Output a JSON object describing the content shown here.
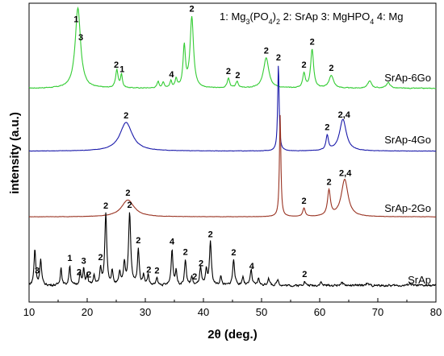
{
  "chart_data": {
    "type": "line",
    "xlabel": "2θ (deg.)",
    "ylabel": "intensity (a.u.)",
    "xlim": [
      10,
      80
    ],
    "xticks": [
      10,
      20,
      30,
      40,
      50,
      60,
      70,
      80
    ],
    "yticks_shown": false,
    "grid": false,
    "legend_items": [
      {
        "num": "1",
        "label": "Mg",
        "sub1": "3",
        "mid": "(PO",
        "sub2": "4",
        "end": ")",
        "sub3": "2"
      },
      {
        "num": "2",
        "label": "SrAp",
        "sub1": "",
        "mid": "",
        "sub2": "",
        "end": "",
        "sub3": ""
      },
      {
        "num": "3",
        "label": "MgHPO",
        "sub1": "4",
        "mid": "",
        "sub2": "",
        "end": "",
        "sub3": ""
      },
      {
        "num": "4",
        "label": "Mg",
        "sub1": "",
        "mid": "",
        "sub2": "",
        "end": "",
        "sub3": ""
      }
    ],
    "series": [
      {
        "name": "SrAp-6Go",
        "color": "#33cc33",
        "baseline": 0.72,
        "noise": 0.004,
        "peaks": [
          [
            18.4,
            1.0,
            0.55
          ],
          [
            25.1,
            0.22,
            0.25
          ],
          [
            25.9,
            0.16,
            0.2
          ],
          [
            32.2,
            0.08,
            0.2
          ],
          [
            33.1,
            0.07,
            0.2
          ],
          [
            34.4,
            0.08,
            0.2
          ],
          [
            35.3,
            0.1,
            0.2
          ],
          [
            36.7,
            0.5,
            0.25
          ],
          [
            38.0,
            0.88,
            0.35
          ],
          [
            44.3,
            0.12,
            0.25
          ],
          [
            45.8,
            0.08,
            0.25
          ],
          [
            50.8,
            0.38,
            0.55
          ],
          [
            57.3,
            0.18,
            0.25
          ],
          [
            58.7,
            0.48,
            0.3
          ],
          [
            62.0,
            0.16,
            0.45
          ],
          [
            68.6,
            0.09,
            0.4
          ],
          [
            71.8,
            0.07,
            0.4
          ]
        ],
        "labels": [
          {
            "x": 18.1,
            "t": "1"
          },
          {
            "x": 18.9,
            "t": "3"
          },
          {
            "x": 25.0,
            "t": "2"
          },
          {
            "x": 26.0,
            "t": "1"
          },
          {
            "x": 34.5,
            "t": "4"
          },
          {
            "x": 38.0,
            "t": "2"
          },
          {
            "x": 44.3,
            "t": "2"
          },
          {
            "x": 45.9,
            "t": "2"
          },
          {
            "x": 50.8,
            "t": "2"
          },
          {
            "x": 57.3,
            "t": "2"
          },
          {
            "x": 58.7,
            "t": "2"
          },
          {
            "x": 62.0,
            "t": "2"
          }
        ]
      },
      {
        "name": "SrAp-4Go",
        "color": "#1a1aaa",
        "baseline": 0.2,
        "noise": 0.0015,
        "peaks": [
          [
            26.7,
            0.27,
            1.3
          ],
          [
            52.9,
            0.82,
            0.15
          ],
          [
            61.3,
            0.14,
            0.25
          ],
          [
            64.0,
            0.3,
            0.7
          ]
        ],
        "labels": [
          {
            "x": 26.7,
            "t": "2"
          },
          {
            "x": 52.9,
            "t": "2"
          },
          {
            "x": 61.3,
            "t": "2"
          },
          {
            "x": 64.2,
            "t": "2,4"
          }
        ]
      },
      {
        "name": "SrAp-2Go",
        "color": "#993322",
        "baseline": 0.09,
        "noise": 0.0015,
        "peaks": [
          [
            27.0,
            0.2,
            1.3
          ],
          [
            53.2,
            1.2,
            0.15
          ],
          [
            57.3,
            0.1,
            0.25
          ],
          [
            61.6,
            0.3,
            0.3
          ],
          [
            64.3,
            0.44,
            0.7
          ]
        ],
        "labels": [
          {
            "x": 27.0,
            "t": "2"
          },
          {
            "x": 57.3,
            "t": "2"
          },
          {
            "x": 61.6,
            "t": "2"
          },
          {
            "x": 64.4,
            "t": "2,4"
          }
        ]
      },
      {
        "name": "SrAp",
        "color": "#000000",
        "baseline": 0.1,
        "noise": 0.012,
        "peaks": [
          [
            11.0,
            0.5,
            0.18
          ],
          [
            12.0,
            0.36,
            0.18
          ],
          [
            15.5,
            0.25,
            0.16
          ],
          [
            17.0,
            0.28,
            0.16
          ],
          [
            18.8,
            0.18,
            0.16
          ],
          [
            19.4,
            0.22,
            0.16
          ],
          [
            20.0,
            0.15,
            0.16
          ],
          [
            21.2,
            0.14,
            0.16
          ],
          [
            22.3,
            0.24,
            0.16
          ],
          [
            23.2,
            1.0,
            0.2
          ],
          [
            24.3,
            0.2,
            0.16
          ],
          [
            25.6,
            0.18,
            0.16
          ],
          [
            26.4,
            0.3,
            0.18
          ],
          [
            27.3,
            1.0,
            0.22
          ],
          [
            28.8,
            0.5,
            0.18
          ],
          [
            29.7,
            0.15,
            0.16
          ],
          [
            30.5,
            0.15,
            0.16
          ],
          [
            32.0,
            0.1,
            0.16
          ],
          [
            34.6,
            0.5,
            0.18
          ],
          [
            35.3,
            0.2,
            0.16
          ],
          [
            36.9,
            0.36,
            0.18
          ],
          [
            38.0,
            0.12,
            0.16
          ],
          [
            39.5,
            0.25,
            0.18
          ],
          [
            40.5,
            0.2,
            0.16
          ],
          [
            41.2,
            0.6,
            0.2
          ],
          [
            43.0,
            0.12,
            0.18
          ],
          [
            45.2,
            0.36,
            0.2
          ],
          [
            46.8,
            0.12,
            0.18
          ],
          [
            48.2,
            0.22,
            0.18
          ],
          [
            49.5,
            0.1,
            0.18
          ],
          [
            51.2,
            0.1,
            0.2
          ],
          [
            52.8,
            0.08,
            0.2
          ],
          [
            57.4,
            0.06,
            0.2
          ],
          [
            60.2,
            0.05,
            0.2
          ],
          [
            63.8,
            0.04,
            0.3
          ],
          [
            68.1,
            0.03,
            0.3
          ],
          [
            75.5,
            0.03,
            0.3
          ]
        ],
        "labels": [
          {
            "x": 11.4,
            "t": "3"
          },
          {
            "x": 17.0,
            "t": "1"
          },
          {
            "x": 18.6,
            "t": "2"
          },
          {
            "x": 19.4,
            "t": "3"
          },
          {
            "x": 20.3,
            "t": "2"
          },
          {
            "x": 22.3,
            "t": "2"
          },
          {
            "x": 23.2,
            "t": "2"
          },
          {
            "x": 27.3,
            "t": "2"
          },
          {
            "x": 28.8,
            "t": "2"
          },
          {
            "x": 30.6,
            "t": "2"
          },
          {
            "x": 32.0,
            "t": "2"
          },
          {
            "x": 34.6,
            "t": "4"
          },
          {
            "x": 36.9,
            "t": "2"
          },
          {
            "x": 38.5,
            "t": "2"
          },
          {
            "x": 39.6,
            "t": "2"
          },
          {
            "x": 41.2,
            "t": "2"
          },
          {
            "x": 45.2,
            "t": "2"
          },
          {
            "x": 48.3,
            "t": "4"
          },
          {
            "x": 57.4,
            "t": "2"
          }
        ]
      }
    ]
  }
}
